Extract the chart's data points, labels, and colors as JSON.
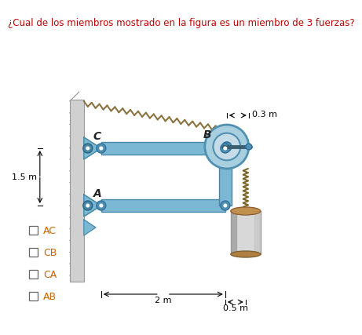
{
  "title": "¿Cual de los miembros mostrado en la figura es un miembro de 3 fuerzas?",
  "title_color": "#c00000",
  "title_fontsize": 8.5,
  "bg_color": "#ffffff",
  "beam_color": "#7ab8d4",
  "beam_color_dark": "#4a88a8",
  "wall_color": "#c8c8c8",
  "wall_hatch_color": "#888888",
  "rope_color": "#8B7340",
  "chain_color": "#7a6428",
  "options": [
    "AC",
    "CB",
    "CA",
    "AB"
  ],
  "label_C": "C",
  "label_B": "B",
  "label_A": "A",
  "dim_15": "1.5 m",
  "dim_2": "2 m",
  "dim_03": "0.3 m",
  "dim_05": "0.5 m"
}
